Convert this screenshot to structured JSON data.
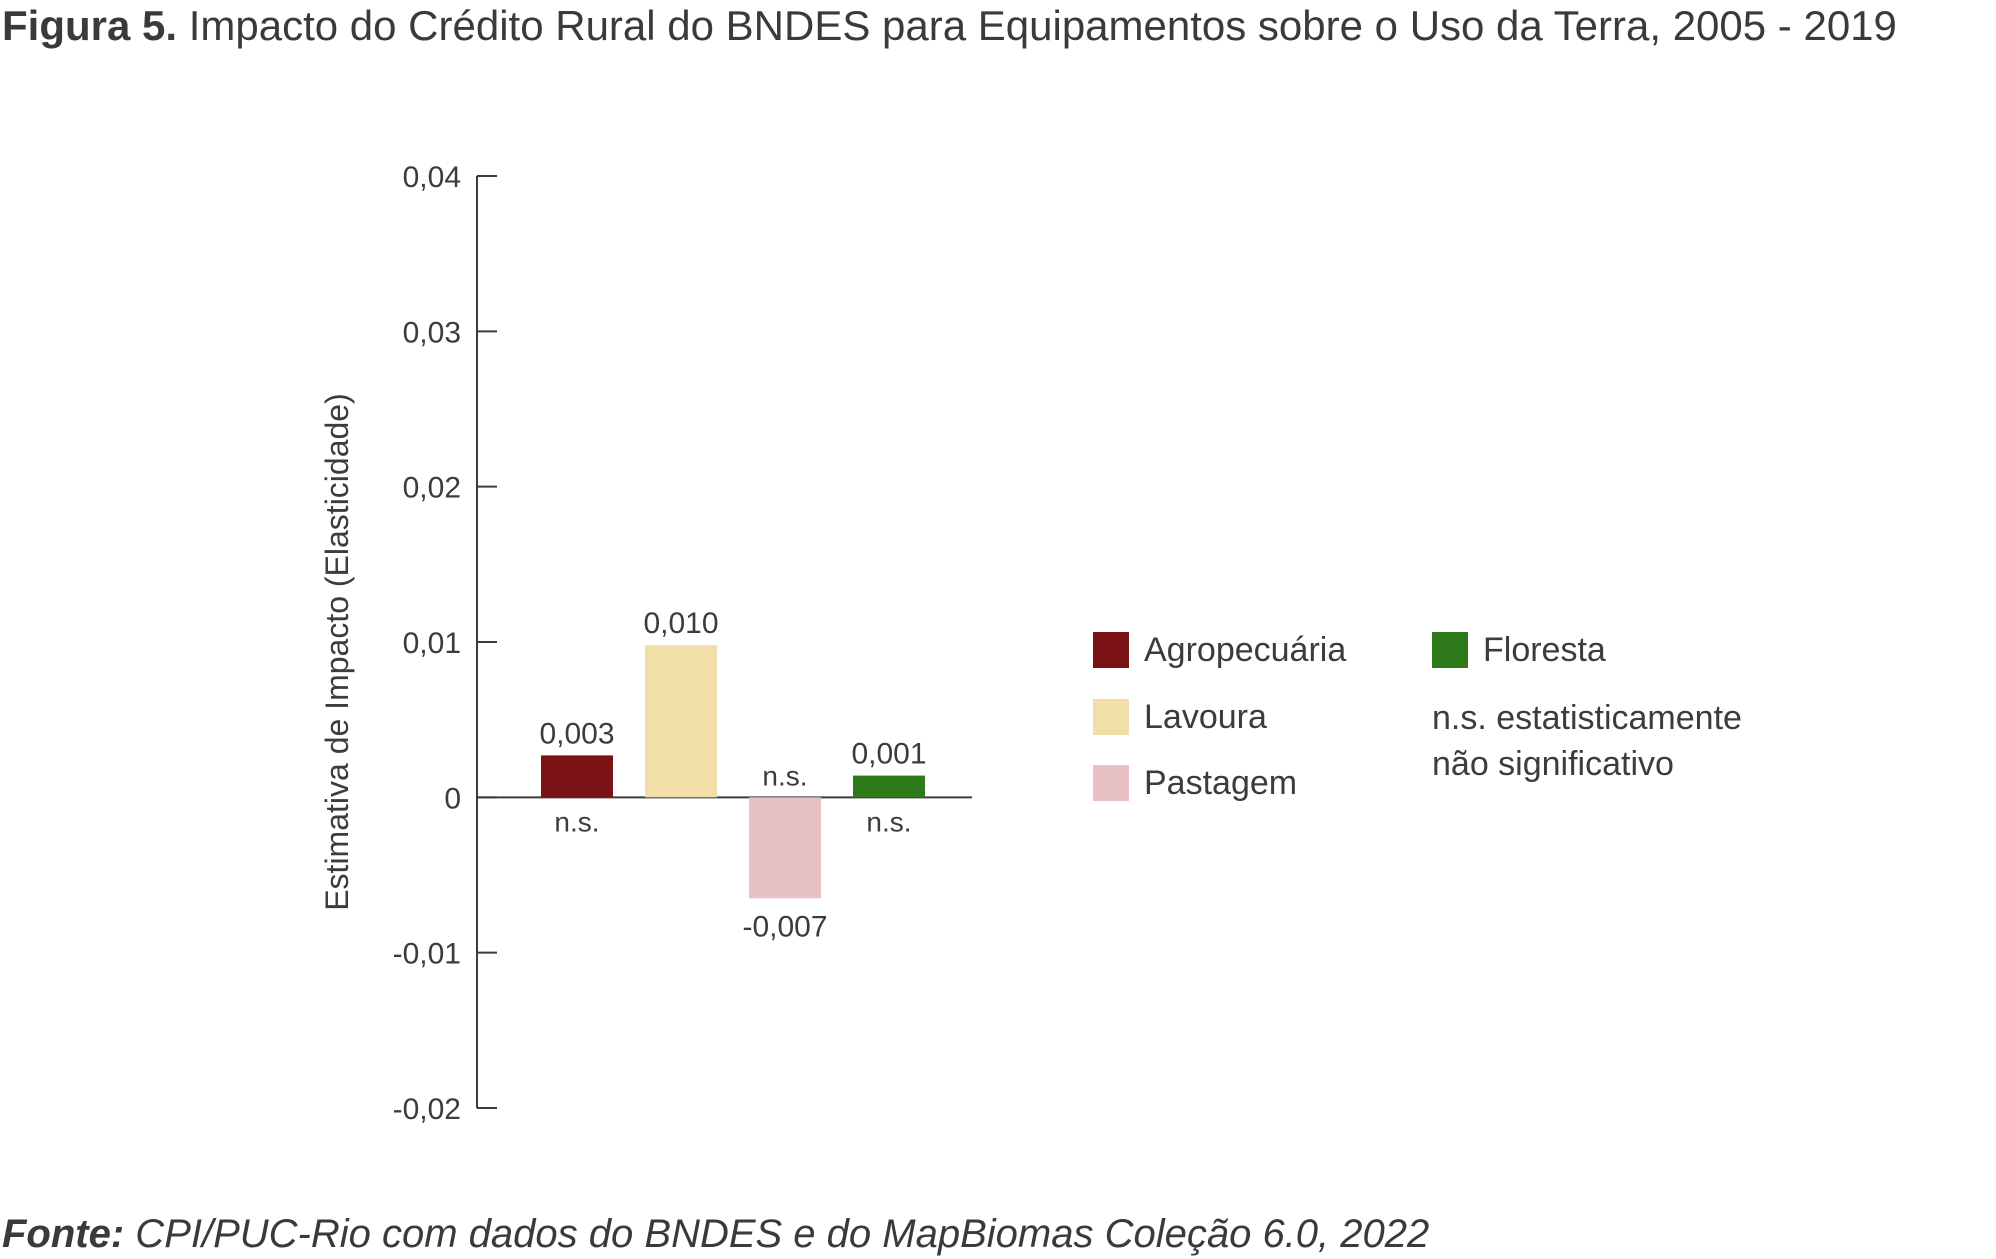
{
  "figure": {
    "title_lead": "Figura 5.",
    "title_text": " Impacto do Crédito Rural do BNDES para Equipamentos sobre o Uso da Terra, 2005 - 2019",
    "source_lead": "Fonte:",
    "source_text": " CPI/PUC-Rio com dados do BNDES e do MapBiomas Coleção 6.0, 2022"
  },
  "chart_data": {
    "type": "bar",
    "title": "",
    "xlabel": "",
    "ylabel": "Estimativa de Impacto (Elasticidade)",
    "ylim": [
      -0.02,
      0.04
    ],
    "yticks": [
      0.04,
      0.03,
      0.02,
      0.01,
      0,
      -0.01,
      -0.02
    ],
    "ytick_labels": [
      "0,04",
      "0,03",
      "0,02",
      "0,01",
      "0",
      "-0,01",
      "-0,02"
    ],
    "grid": false,
    "legend_position": "right",
    "categories": [
      "Agropecuária",
      "Lavoura",
      "Pastagem",
      "Floresta"
    ],
    "values": [
      0.0027,
      0.0098,
      -0.0065,
      0.0014
    ],
    "value_labels": [
      "0,003",
      "0,010",
      "-0,007",
      "0,001"
    ],
    "significance": [
      "n.s.",
      "",
      "n.s.",
      "n.s."
    ],
    "colors": [
      "#7a1216",
      "#f2dfa7",
      "#e8c2c3",
      "#2e7a1a"
    ],
    "legend": [
      {
        "label": "Agropecuária",
        "color": "#7a1216"
      },
      {
        "label": "Lavoura",
        "color": "#f2dfa7"
      },
      {
        "label": "Pastagem",
        "color": "#e8c2c3"
      },
      {
        "label": "Floresta",
        "color": "#2e7a1a"
      }
    ],
    "note_line1": "n.s. estatisticamente",
    "note_line2": "não significativo"
  }
}
